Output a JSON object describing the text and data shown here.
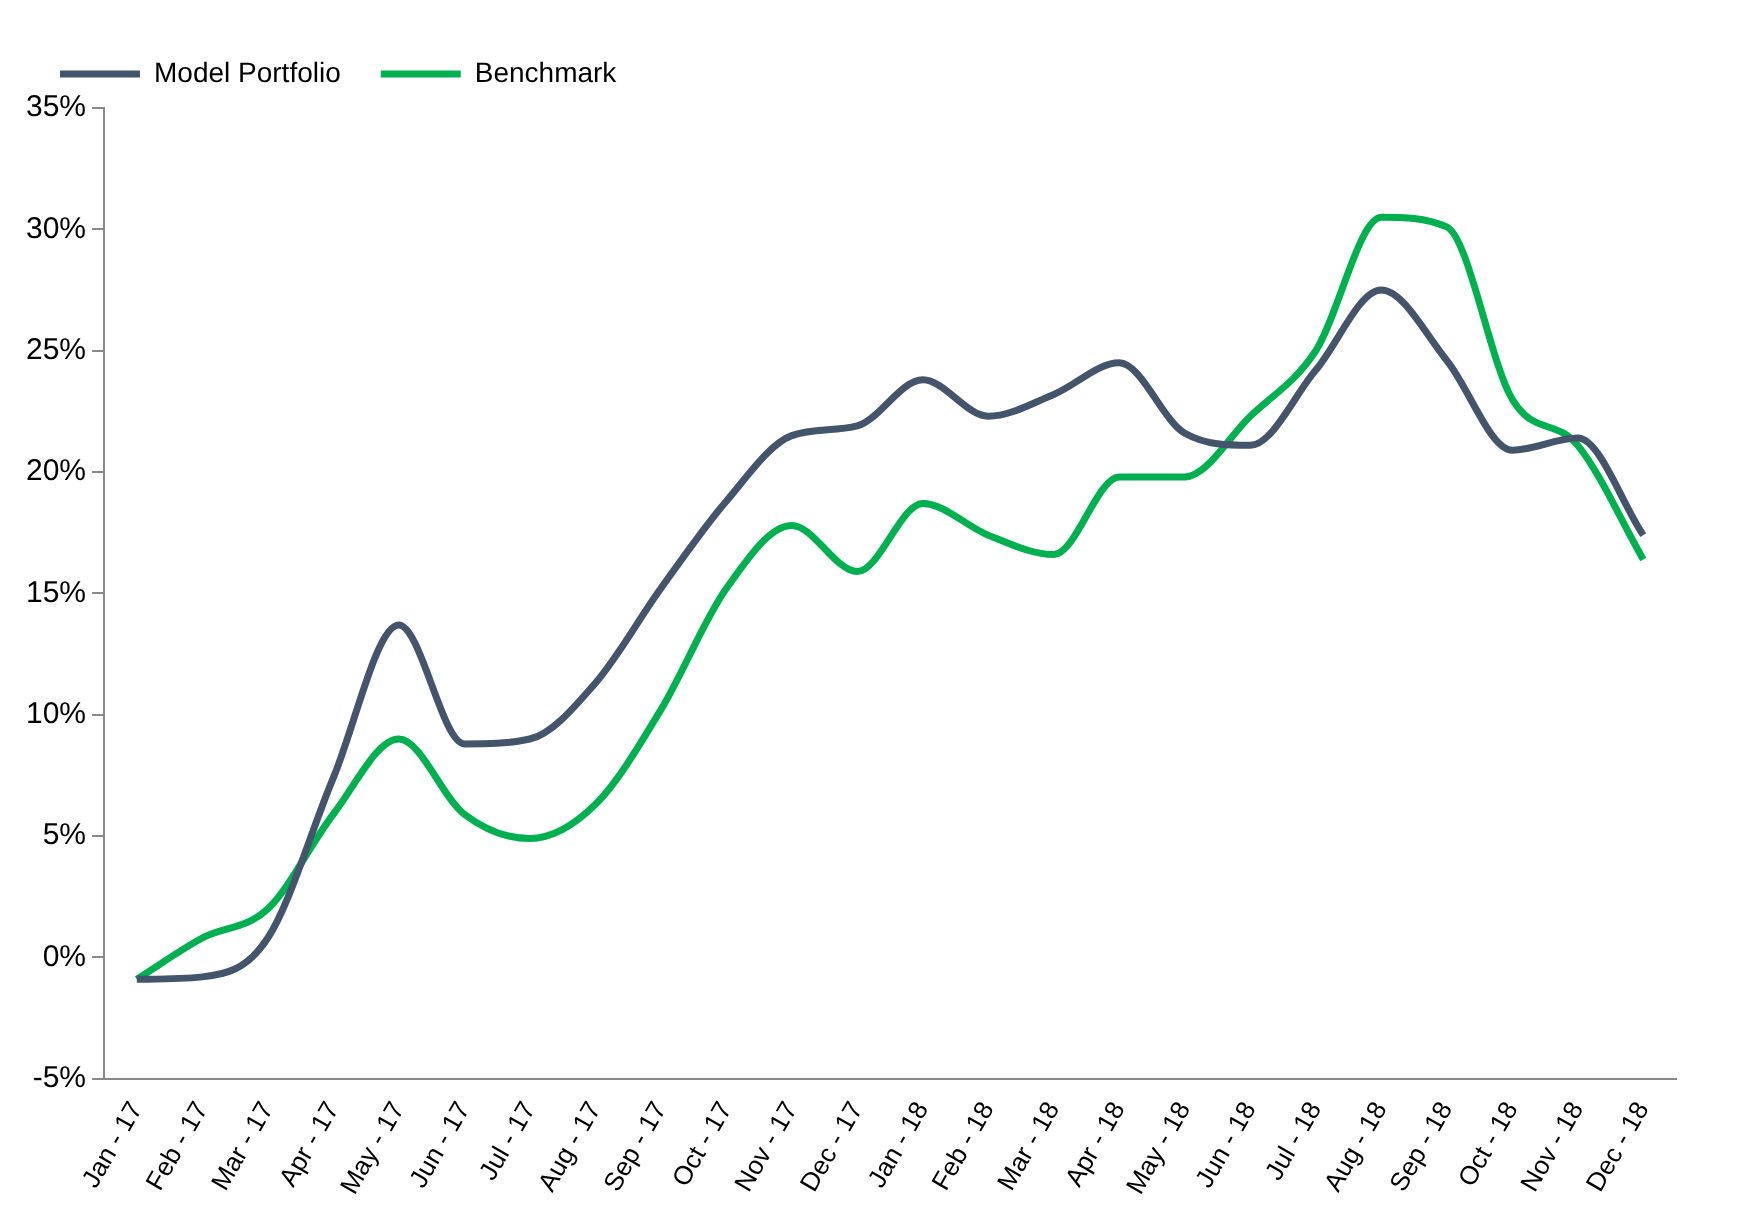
{
  "chart_data": {
    "type": "line",
    "categories": [
      "Jan - 17",
      "Feb - 17",
      "Mar - 17",
      "Apr - 17",
      "May - 17",
      "Jun - 17",
      "Jul - 17",
      "Aug - 17",
      "Sep - 17",
      "Oct - 17",
      "Nov - 17",
      "Dec - 17",
      "Jan - 18",
      "Feb - 18",
      "Mar - 18",
      "Apr - 18",
      "May - 18",
      "Jun - 18",
      "Jul - 18",
      "Aug - 18",
      "Sep - 18",
      "Oct - 18",
      "Nov - 18",
      "Dec - 18"
    ],
    "series": [
      {
        "name": "Model Portfolio",
        "color": "#44546a",
        "values": [
          -0.9,
          -0.8,
          0.8,
          7.4,
          13.7,
          8.8,
          9.0,
          11.3,
          15.2,
          18.8,
          21.5,
          21.9,
          23.8,
          22.3,
          23.2,
          24.5,
          21.6,
          21.1,
          24.2,
          27.5,
          24.6,
          20.9,
          21.4,
          17.4
        ]
      },
      {
        "name": "Benchmark",
        "color": "#00b050",
        "values": [
          -0.9,
          0.8,
          2.0,
          5.9,
          9.0,
          5.9,
          4.9,
          6.3,
          10.2,
          15.2,
          17.8,
          15.9,
          18.7,
          17.4,
          16.6,
          19.8,
          19.8,
          22.3,
          25.0,
          30.5,
          30.1,
          23.0,
          21.1,
          16.4
        ]
      }
    ],
    "ylim": [
      -5,
      35
    ],
    "yticks": [
      {
        "value": -5,
        "label": "-5%"
      },
      {
        "value": 0,
        "label": "0%"
      },
      {
        "value": 5,
        "label": "5%"
      },
      {
        "value": 10,
        "label": "10%"
      },
      {
        "value": 15,
        "label": "15%"
      },
      {
        "value": 20,
        "label": "20%"
      },
      {
        "value": 25,
        "label": "25%"
      },
      {
        "value": 30,
        "label": "30%"
      },
      {
        "value": 35,
        "label": "35%"
      }
    ],
    "grid": false,
    "legend": "top left",
    "marker": "none",
    "line_style": "solid"
  }
}
